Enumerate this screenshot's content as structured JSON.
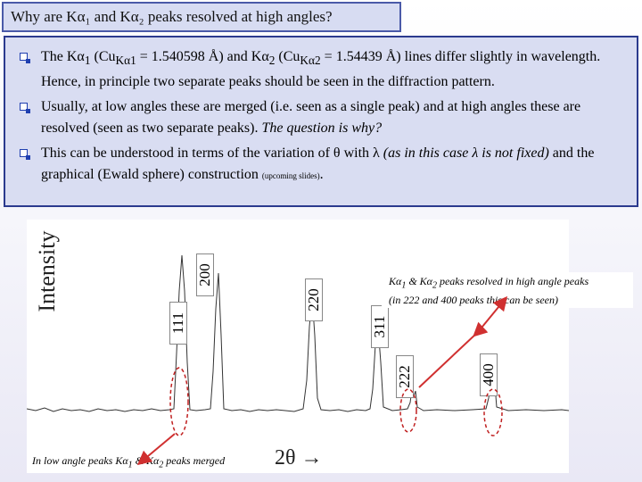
{
  "slide": {
    "title": "Why are Kα₁ and Kα₂ peaks resolved at high angles?",
    "bullets": [
      {
        "p1": "The Kα",
        "p1_sub": "1",
        "p2": " (Cu",
        "p2_sub": "Kα1",
        "p3": " = 1.540598 Å) and Kα",
        "p3_sub": "2",
        "p4": " (Cu",
        "p4_sub": "Kα2",
        "p5": " = 1.54439 Å) lines differ slightly in wavelength. Hence, in principle two separate peaks should be seen in the diffraction pattern."
      },
      {
        "text": "Usually, at low angles these are merged (i.e. seen as a single peak) and at high angles these are resolved (seen as two separate peaks). ",
        "italic": "The question is why?"
      },
      {
        "text1": "This can be understood in terms of the variation of θ with λ ",
        "italic": "(as in this case λ is not fixed)",
        "text2": " and the graphical (Ewald sphere) construction ",
        "tiny": "(upcoming slides)",
        "end": "."
      }
    ]
  },
  "figure": {
    "ylabel": "Intensity",
    "xlabel": "2θ →",
    "peak_labels": {
      "p111": "111",
      "p200": "200",
      "p220": "220",
      "p311": "311",
      "p222": "222",
      "p400": "400"
    },
    "note_right_line1_a": "Kα",
    "note_right_line1_sub1": "1",
    "note_right_line1_b": " & Kα",
    "note_right_line1_sub2": "2",
    "note_right_line1_c": " peaks resolved in high angle peaks",
    "note_right_line2": "(in 222 and 400 peaks this can be seen)",
    "note_left_a": "In low angle peaks Kα",
    "note_left_sub1": "1",
    "note_left_b": " & Kα",
    "note_left_sub2": "2",
    "note_left_c": " peaks merged",
    "colors": {
      "arrow": "#d03030",
      "ellipse": "#c02020",
      "frame": "#2b3a8e"
    }
  }
}
